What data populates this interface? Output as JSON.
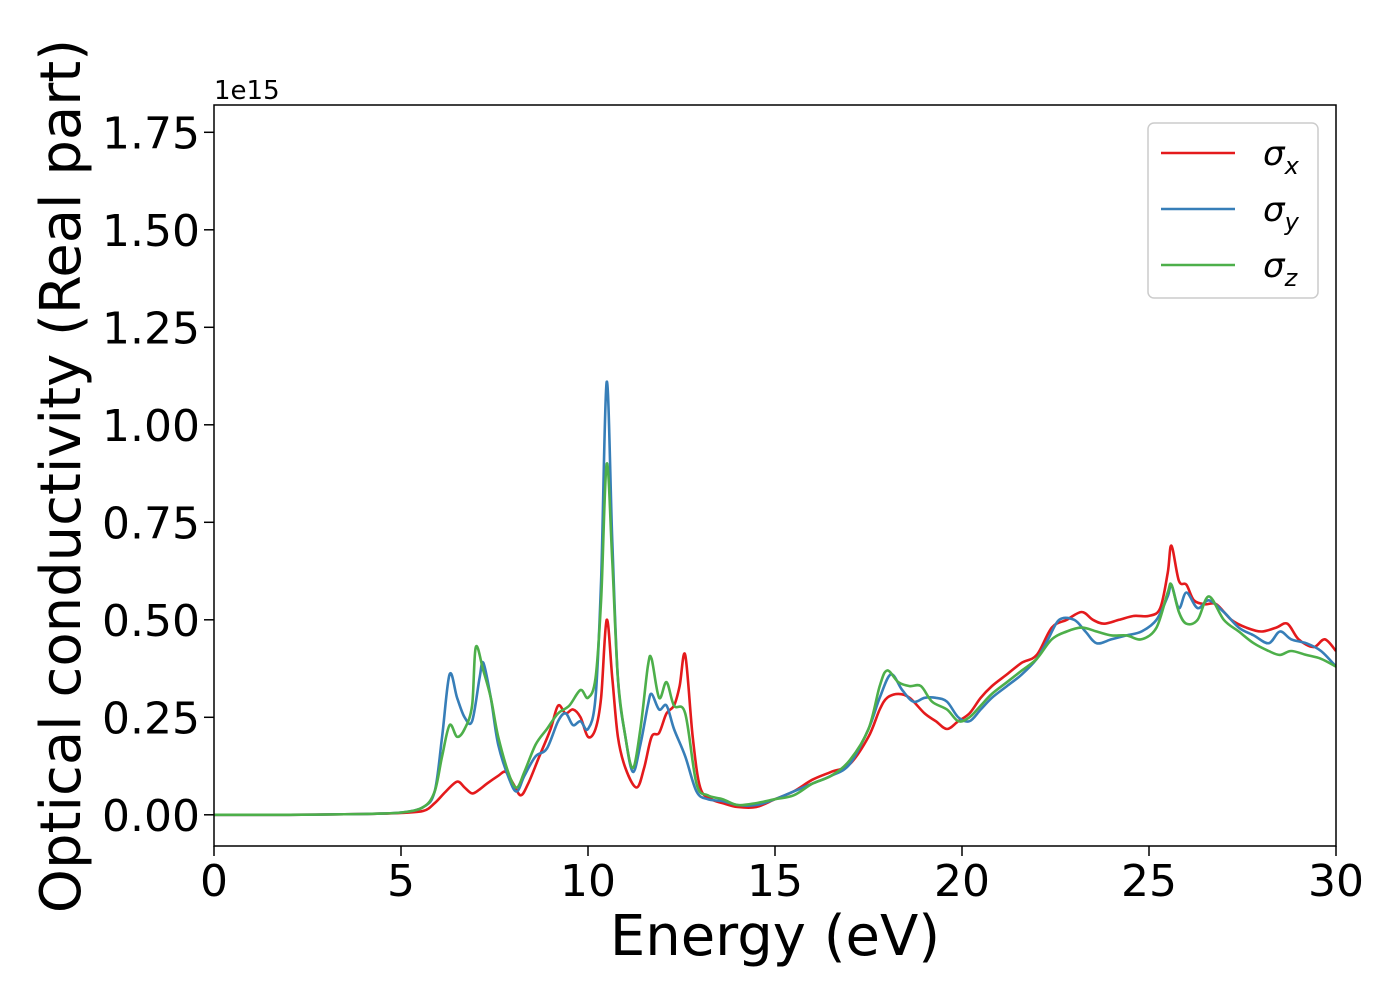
{
  "chart_data": {
    "type": "line",
    "xlabel": "Energy (eV)",
    "ylabel": "Optical conductivity (Real part)",
    "y_offset_label": "1e15",
    "xlim": [
      0,
      30
    ],
    "ylim": [
      -0.08,
      1.82
    ],
    "y_scale_factor": 1000000000000000.0,
    "xticks": [
      0,
      5,
      10,
      15,
      20,
      25,
      30
    ],
    "xtick_labels": [
      "0",
      "5",
      "10",
      "15",
      "20",
      "25",
      "30"
    ],
    "yticks": [
      0.0,
      0.25,
      0.5,
      0.75,
      1.0,
      1.25,
      1.5,
      1.75
    ],
    "ytick_labels": [
      "0.00",
      "0.25",
      "0.50",
      "0.75",
      "1.00",
      "1.25",
      "1.50",
      "1.75"
    ],
    "grid": false,
    "legend_position": "top-right",
    "series": [
      {
        "name": "σx",
        "symbol": "σ",
        "subscript": "x",
        "color": "#e41a1c",
        "points": [
          [
            0,
            0
          ],
          [
            2,
            0
          ],
          [
            4,
            0.002
          ],
          [
            5,
            0.005
          ],
          [
            5.6,
            0.01
          ],
          [
            5.9,
            0.03
          ],
          [
            6.2,
            0.06
          ],
          [
            6.5,
            0.085
          ],
          [
            6.7,
            0.07
          ],
          [
            6.9,
            0.055
          ],
          [
            7.1,
            0.065
          ],
          [
            7.3,
            0.08
          ],
          [
            7.6,
            0.1
          ],
          [
            7.8,
            0.11
          ],
          [
            8.0,
            0.08
          ],
          [
            8.2,
            0.05
          ],
          [
            8.4,
            0.08
          ],
          [
            8.7,
            0.15
          ],
          [
            9.0,
            0.22
          ],
          [
            9.2,
            0.28
          ],
          [
            9.4,
            0.26
          ],
          [
            9.6,
            0.27
          ],
          [
            9.8,
            0.25
          ],
          [
            10.0,
            0.2
          ],
          [
            10.2,
            0.22
          ],
          [
            10.35,
            0.3
          ],
          [
            10.5,
            0.5
          ],
          [
            10.65,
            0.35
          ],
          [
            10.8,
            0.2
          ],
          [
            11.0,
            0.12
          ],
          [
            11.3,
            0.07
          ],
          [
            11.5,
            0.12
          ],
          [
            11.7,
            0.2
          ],
          [
            11.9,
            0.21
          ],
          [
            12.1,
            0.26
          ],
          [
            12.3,
            0.28
          ],
          [
            12.45,
            0.33
          ],
          [
            12.6,
            0.41
          ],
          [
            12.8,
            0.2
          ],
          [
            13.0,
            0.07
          ],
          [
            13.3,
            0.04
          ],
          [
            13.6,
            0.03
          ],
          [
            14.0,
            0.02
          ],
          [
            14.5,
            0.02
          ],
          [
            15.0,
            0.04
          ],
          [
            15.5,
            0.06
          ],
          [
            16.0,
            0.09
          ],
          [
            16.5,
            0.11
          ],
          [
            17.0,
            0.13
          ],
          [
            17.5,
            0.2
          ],
          [
            17.8,
            0.27
          ],
          [
            18.0,
            0.3
          ],
          [
            18.3,
            0.31
          ],
          [
            18.6,
            0.3
          ],
          [
            19.0,
            0.26
          ],
          [
            19.3,
            0.24
          ],
          [
            19.6,
            0.22
          ],
          [
            19.9,
            0.24
          ],
          [
            20.2,
            0.26
          ],
          [
            20.5,
            0.3
          ],
          [
            20.8,
            0.33
          ],
          [
            21.2,
            0.36
          ],
          [
            21.6,
            0.39
          ],
          [
            22.0,
            0.41
          ],
          [
            22.4,
            0.48
          ],
          [
            22.8,
            0.5
          ],
          [
            23.2,
            0.52
          ],
          [
            23.5,
            0.5
          ],
          [
            23.8,
            0.49
          ],
          [
            24.2,
            0.5
          ],
          [
            24.6,
            0.51
          ],
          [
            25.0,
            0.51
          ],
          [
            25.3,
            0.53
          ],
          [
            25.5,
            0.62
          ],
          [
            25.6,
            0.69
          ],
          [
            25.8,
            0.6
          ],
          [
            26.0,
            0.59
          ],
          [
            26.2,
            0.55
          ],
          [
            26.5,
            0.54
          ],
          [
            26.8,
            0.54
          ],
          [
            27.2,
            0.5
          ],
          [
            27.6,
            0.48
          ],
          [
            28.0,
            0.47
          ],
          [
            28.4,
            0.48
          ],
          [
            28.7,
            0.49
          ],
          [
            29.0,
            0.45
          ],
          [
            29.4,
            0.43
          ],
          [
            29.7,
            0.45
          ],
          [
            30.0,
            0.42
          ]
        ]
      },
      {
        "name": "σy",
        "symbol": "σ",
        "subscript": "y",
        "color": "#377eb8",
        "points": [
          [
            0,
            0
          ],
          [
            2,
            0
          ],
          [
            4,
            0.002
          ],
          [
            5,
            0.006
          ],
          [
            5.6,
            0.02
          ],
          [
            5.9,
            0.06
          ],
          [
            6.1,
            0.2
          ],
          [
            6.3,
            0.36
          ],
          [
            6.5,
            0.3
          ],
          [
            6.7,
            0.25
          ],
          [
            6.9,
            0.24
          ],
          [
            7.1,
            0.35
          ],
          [
            7.2,
            0.39
          ],
          [
            7.4,
            0.3
          ],
          [
            7.6,
            0.18
          ],
          [
            7.9,
            0.09
          ],
          [
            8.1,
            0.06
          ],
          [
            8.3,
            0.1
          ],
          [
            8.6,
            0.15
          ],
          [
            8.9,
            0.17
          ],
          [
            9.2,
            0.24
          ],
          [
            9.4,
            0.26
          ],
          [
            9.6,
            0.23
          ],
          [
            9.8,
            0.24
          ],
          [
            10.0,
            0.22
          ],
          [
            10.2,
            0.3
          ],
          [
            10.35,
            0.6
          ],
          [
            10.5,
            1.11
          ],
          [
            10.65,
            0.7
          ],
          [
            10.8,
            0.35
          ],
          [
            11.0,
            0.2
          ],
          [
            11.2,
            0.11
          ],
          [
            11.4,
            0.18
          ],
          [
            11.6,
            0.28
          ],
          [
            11.7,
            0.31
          ],
          [
            11.9,
            0.27
          ],
          [
            12.1,
            0.28
          ],
          [
            12.3,
            0.22
          ],
          [
            12.6,
            0.15
          ],
          [
            12.9,
            0.06
          ],
          [
            13.2,
            0.04
          ],
          [
            13.6,
            0.035
          ],
          [
            14.0,
            0.025
          ],
          [
            14.5,
            0.025
          ],
          [
            15.0,
            0.04
          ],
          [
            15.5,
            0.06
          ],
          [
            16.0,
            0.08
          ],
          [
            16.5,
            0.1
          ],
          [
            17.0,
            0.13
          ],
          [
            17.5,
            0.22
          ],
          [
            17.8,
            0.3
          ],
          [
            18.1,
            0.36
          ],
          [
            18.4,
            0.32
          ],
          [
            18.7,
            0.29
          ],
          [
            19.0,
            0.3
          ],
          [
            19.3,
            0.3
          ],
          [
            19.6,
            0.29
          ],
          [
            19.9,
            0.25
          ],
          [
            20.2,
            0.24
          ],
          [
            20.5,
            0.27
          ],
          [
            20.8,
            0.3
          ],
          [
            21.2,
            0.33
          ],
          [
            21.6,
            0.36
          ],
          [
            22.0,
            0.4
          ],
          [
            22.3,
            0.45
          ],
          [
            22.6,
            0.5
          ],
          [
            23.0,
            0.5
          ],
          [
            23.3,
            0.47
          ],
          [
            23.6,
            0.44
          ],
          [
            24.0,
            0.45
          ],
          [
            24.4,
            0.46
          ],
          [
            24.8,
            0.47
          ],
          [
            25.2,
            0.5
          ],
          [
            25.5,
            0.56
          ],
          [
            25.6,
            0.59
          ],
          [
            25.8,
            0.53
          ],
          [
            26.0,
            0.57
          ],
          [
            26.3,
            0.53
          ],
          [
            26.6,
            0.55
          ],
          [
            27.0,
            0.52
          ],
          [
            27.4,
            0.48
          ],
          [
            27.8,
            0.46
          ],
          [
            28.2,
            0.44
          ],
          [
            28.5,
            0.47
          ],
          [
            28.8,
            0.45
          ],
          [
            29.2,
            0.44
          ],
          [
            29.6,
            0.42
          ],
          [
            30.0,
            0.38
          ]
        ]
      },
      {
        "name": "σz",
        "symbol": "σ",
        "subscript": "z",
        "color": "#4daf4a",
        "points": [
          [
            0,
            0
          ],
          [
            2,
            0
          ],
          [
            4,
            0.002
          ],
          [
            5,
            0.006
          ],
          [
            5.6,
            0.02
          ],
          [
            5.9,
            0.06
          ],
          [
            6.1,
            0.15
          ],
          [
            6.3,
            0.23
          ],
          [
            6.5,
            0.2
          ],
          [
            6.7,
            0.22
          ],
          [
            6.9,
            0.28
          ],
          [
            7.0,
            0.43
          ],
          [
            7.2,
            0.37
          ],
          [
            7.4,
            0.3
          ],
          [
            7.6,
            0.2
          ],
          [
            7.9,
            0.1
          ],
          [
            8.1,
            0.07
          ],
          [
            8.3,
            0.11
          ],
          [
            8.6,
            0.18
          ],
          [
            8.9,
            0.22
          ],
          [
            9.2,
            0.26
          ],
          [
            9.5,
            0.28
          ],
          [
            9.8,
            0.32
          ],
          [
            10.0,
            0.3
          ],
          [
            10.2,
            0.35
          ],
          [
            10.35,
            0.55
          ],
          [
            10.5,
            0.9
          ],
          [
            10.65,
            0.65
          ],
          [
            10.8,
            0.35
          ],
          [
            11.0,
            0.2
          ],
          [
            11.2,
            0.12
          ],
          [
            11.4,
            0.22
          ],
          [
            11.6,
            0.38
          ],
          [
            11.7,
            0.4
          ],
          [
            11.9,
            0.3
          ],
          [
            12.1,
            0.34
          ],
          [
            12.3,
            0.28
          ],
          [
            12.6,
            0.26
          ],
          [
            12.9,
            0.08
          ],
          [
            13.2,
            0.05
          ],
          [
            13.6,
            0.04
          ],
          [
            14.0,
            0.025
          ],
          [
            14.5,
            0.03
          ],
          [
            15.0,
            0.04
          ],
          [
            15.5,
            0.05
          ],
          [
            16.0,
            0.08
          ],
          [
            16.5,
            0.1
          ],
          [
            17.0,
            0.14
          ],
          [
            17.5,
            0.22
          ],
          [
            17.8,
            0.33
          ],
          [
            18.0,
            0.37
          ],
          [
            18.3,
            0.34
          ],
          [
            18.6,
            0.33
          ],
          [
            18.9,
            0.33
          ],
          [
            19.2,
            0.29
          ],
          [
            19.6,
            0.27
          ],
          [
            19.9,
            0.24
          ],
          [
            20.2,
            0.25
          ],
          [
            20.5,
            0.28
          ],
          [
            20.8,
            0.31
          ],
          [
            21.2,
            0.34
          ],
          [
            21.6,
            0.37
          ],
          [
            22.0,
            0.4
          ],
          [
            22.4,
            0.45
          ],
          [
            22.8,
            0.47
          ],
          [
            23.2,
            0.48
          ],
          [
            23.6,
            0.47
          ],
          [
            24.0,
            0.46
          ],
          [
            24.4,
            0.46
          ],
          [
            24.8,
            0.45
          ],
          [
            25.2,
            0.48
          ],
          [
            25.5,
            0.57
          ],
          [
            25.6,
            0.59
          ],
          [
            25.8,
            0.52
          ],
          [
            26.0,
            0.49
          ],
          [
            26.3,
            0.5
          ],
          [
            26.6,
            0.56
          ],
          [
            27.0,
            0.5
          ],
          [
            27.4,
            0.47
          ],
          [
            27.8,
            0.44
          ],
          [
            28.2,
            0.42
          ],
          [
            28.5,
            0.41
          ],
          [
            28.8,
            0.42
          ],
          [
            29.2,
            0.41
          ],
          [
            29.6,
            0.4
          ],
          [
            30.0,
            0.38
          ]
        ]
      }
    ]
  }
}
